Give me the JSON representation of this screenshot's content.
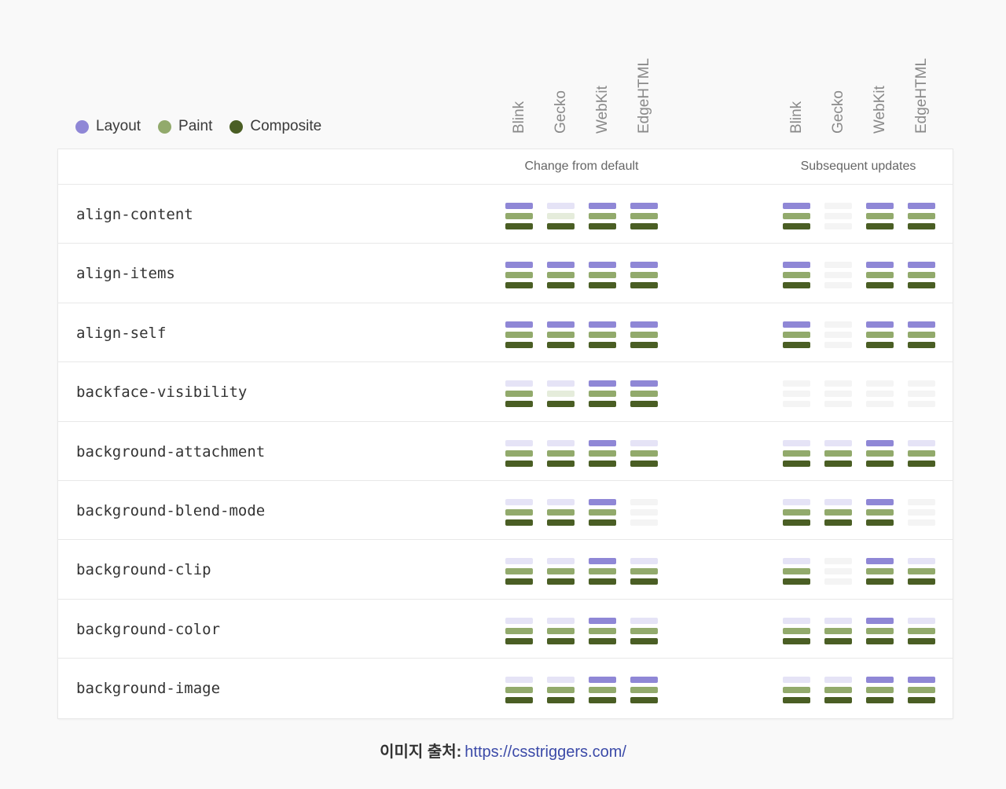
{
  "legend": [
    {
      "label": "Layout",
      "color": "#8f87d6"
    },
    {
      "label": "Paint",
      "color": "#92aa6c"
    },
    {
      "label": "Composite",
      "color": "#4a5e24"
    }
  ],
  "engines": [
    "Blink",
    "Gecko",
    "WebKit",
    "EdgeHTML"
  ],
  "groups": [
    {
      "title": "Change from default"
    },
    {
      "title": "Subsequent updates"
    }
  ],
  "colors": {
    "layout_on": "#8f87d6",
    "layout_off": "#e5e3f6",
    "paint_on": "#92aa6c",
    "paint_off": "#e5ecdb",
    "composite_on": "#4a5e24",
    "composite_off": "#dfe5d4",
    "none": "#f4f4f4"
  },
  "rows": [
    {
      "name": "align-content",
      "change": [
        [
          1,
          1,
          1
        ],
        [
          0,
          0,
          1
        ],
        [
          1,
          1,
          1
        ],
        [
          1,
          1,
          1
        ]
      ],
      "update": [
        [
          1,
          1,
          1
        ],
        [
          2,
          2,
          2
        ],
        [
          1,
          1,
          1
        ],
        [
          1,
          1,
          1
        ]
      ]
    },
    {
      "name": "align-items",
      "change": [
        [
          1,
          1,
          1
        ],
        [
          1,
          1,
          1
        ],
        [
          1,
          1,
          1
        ],
        [
          1,
          1,
          1
        ]
      ],
      "update": [
        [
          1,
          1,
          1
        ],
        [
          2,
          2,
          2
        ],
        [
          1,
          1,
          1
        ],
        [
          1,
          1,
          1
        ]
      ]
    },
    {
      "name": "align-self",
      "change": [
        [
          1,
          1,
          1
        ],
        [
          1,
          1,
          1
        ],
        [
          1,
          1,
          1
        ],
        [
          1,
          1,
          1
        ]
      ],
      "update": [
        [
          1,
          1,
          1
        ],
        [
          2,
          2,
          2
        ],
        [
          1,
          1,
          1
        ],
        [
          1,
          1,
          1
        ]
      ]
    },
    {
      "name": "backface-visibility",
      "change": [
        [
          0,
          1,
          1
        ],
        [
          0,
          0,
          1
        ],
        [
          1,
          1,
          1
        ],
        [
          1,
          1,
          1
        ]
      ],
      "update": [
        [
          2,
          2,
          2
        ],
        [
          2,
          2,
          2
        ],
        [
          2,
          2,
          2
        ],
        [
          2,
          2,
          2
        ]
      ]
    },
    {
      "name": "background-attachment",
      "change": [
        [
          0,
          1,
          1
        ],
        [
          0,
          1,
          1
        ],
        [
          1,
          1,
          1
        ],
        [
          0,
          1,
          1
        ]
      ],
      "update": [
        [
          0,
          1,
          1
        ],
        [
          0,
          1,
          1
        ],
        [
          1,
          1,
          1
        ],
        [
          0,
          1,
          1
        ]
      ]
    },
    {
      "name": "background-blend-mode",
      "change": [
        [
          0,
          1,
          1
        ],
        [
          0,
          1,
          1
        ],
        [
          1,
          1,
          1
        ],
        [
          2,
          2,
          2
        ]
      ],
      "update": [
        [
          0,
          1,
          1
        ],
        [
          0,
          1,
          1
        ],
        [
          1,
          1,
          1
        ],
        [
          2,
          2,
          2
        ]
      ]
    },
    {
      "name": "background-clip",
      "change": [
        [
          0,
          1,
          1
        ],
        [
          0,
          1,
          1
        ],
        [
          1,
          1,
          1
        ],
        [
          0,
          1,
          1
        ]
      ],
      "update": [
        [
          0,
          1,
          1
        ],
        [
          2,
          2,
          2
        ],
        [
          1,
          1,
          1
        ],
        [
          0,
          1,
          1
        ]
      ]
    },
    {
      "name": "background-color",
      "change": [
        [
          0,
          1,
          1
        ],
        [
          0,
          1,
          1
        ],
        [
          1,
          1,
          1
        ],
        [
          0,
          1,
          1
        ]
      ],
      "update": [
        [
          0,
          1,
          1
        ],
        [
          0,
          1,
          1
        ],
        [
          1,
          1,
          1
        ],
        [
          0,
          1,
          1
        ]
      ]
    },
    {
      "name": "background-image",
      "change": [
        [
          0,
          1,
          1
        ],
        [
          0,
          1,
          1
        ],
        [
          1,
          1,
          1
        ],
        [
          1,
          1,
          1
        ]
      ],
      "update": [
        [
          0,
          1,
          1
        ],
        [
          0,
          1,
          1
        ],
        [
          1,
          1,
          1
        ],
        [
          1,
          1,
          1
        ]
      ]
    }
  ],
  "caption": {
    "label": "이미지 출처:",
    "url": "https://csstriggers.com/"
  }
}
